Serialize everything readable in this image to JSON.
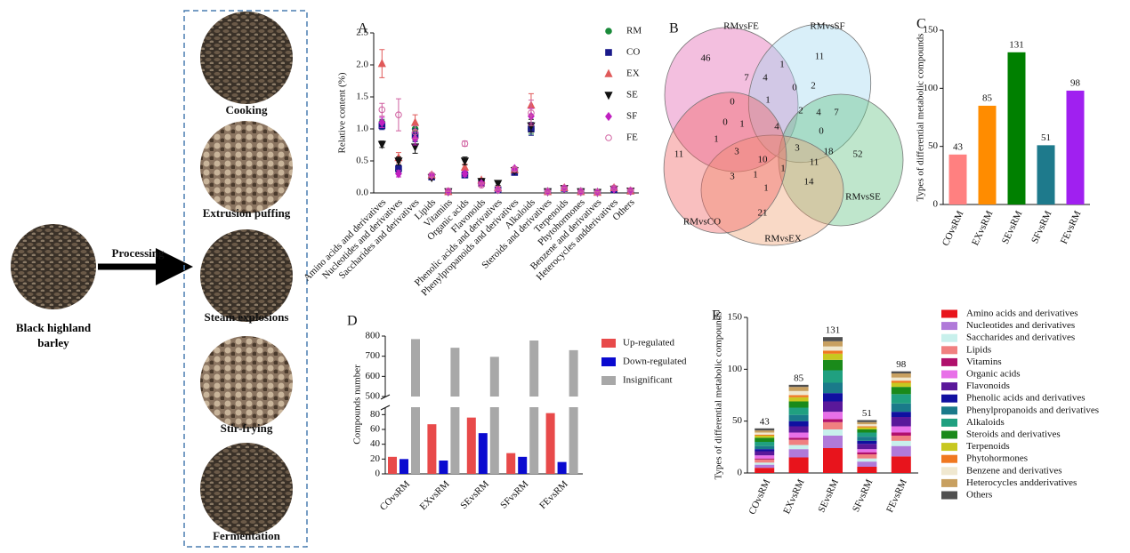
{
  "figure": {
    "source_label": "Black highland barley",
    "arrow_label": "Processing",
    "methods": [
      "Cooking",
      "Extrusion puffing",
      "Steam explosions",
      "Stir-frying",
      "Fermentation"
    ]
  },
  "chart_data": [
    {
      "type": "scatter",
      "panel": "A",
      "ylabel": "Relative content (%)",
      "categories": [
        "Amino acids and derivatives",
        "Nucleotides and derivatives",
        "Saccharides and derivatives",
        "Lipids",
        "Vitamins",
        "Organic acids",
        "Flavonoids",
        "Phenolic acids and derivatives",
        "Phenylpropanoids and derivatives",
        "Alkaloids",
        "Steroids and derivatives",
        "Terpenoids",
        "Phytohormones",
        "Benzene and derivatives",
        "Heterocycles andderivatives",
        "Others"
      ],
      "ylim": [
        0,
        2.5
      ],
      "yticks": [
        {
          "value": 0,
          "label": "0.0"
        },
        0.5,
        {
          "value": 1,
          "label": "1.0"
        },
        1.5,
        {
          "value": 2,
          "label": "2.0"
        },
        2.5
      ],
      "series": [
        {
          "name": "RM",
          "color": "#1a8a3a",
          "marker": "circle",
          "values": [
            1.1,
            0.35,
            1.0,
            0.25,
            0.02,
            0.3,
            0.15,
            0.05,
            0.33,
            1.0,
            0.02,
            0.07,
            0.02,
            0.01,
            0.05,
            0.03
          ],
          "errors": [
            0.05,
            0.04,
            0.08,
            0.02,
            0.01,
            0.03,
            0.02,
            0.01,
            0.02,
            0.08,
            0.01,
            0.01,
            0.01,
            0.01,
            0.01,
            0.01
          ]
        },
        {
          "name": "CO",
          "color": "#1a1a8a",
          "marker": "square",
          "values": [
            1.05,
            0.38,
            0.9,
            0.25,
            0.02,
            0.28,
            0.15,
            0.05,
            0.32,
            1.0,
            0.02,
            0.07,
            0.02,
            0.01,
            0.05,
            0.03
          ],
          "errors": [
            0.06,
            0.05,
            0.1,
            0.02,
            0.01,
            0.03,
            0.02,
            0.01,
            0.02,
            0.1,
            0.01,
            0.01,
            0.01,
            0.01,
            0.01,
            0.01
          ]
        },
        {
          "name": "EX",
          "color": "#e05a5a",
          "marker": "triangle",
          "values": [
            2.02,
            0.55,
            1.1,
            0.28,
            0.02,
            0.4,
            0.2,
            0.08,
            0.36,
            1.37,
            0.02,
            0.08,
            0.02,
            0.01,
            0.08,
            0.03
          ],
          "errors": [
            0.22,
            0.08,
            0.12,
            0.03,
            0.01,
            0.05,
            0.03,
            0.02,
            0.03,
            0.18,
            0.01,
            0.01,
            0.01,
            0.01,
            0.02,
            0.01
          ]
        },
        {
          "name": "SE",
          "color": "#111111",
          "marker": "triangle-down",
          "values": [
            0.76,
            0.5,
            0.72,
            0.24,
            0.02,
            0.5,
            0.18,
            0.15,
            0.35,
            1.05,
            0.02,
            0.07,
            0.02,
            0.01,
            0.06,
            0.03
          ],
          "errors": [
            0.05,
            0.06,
            0.1,
            0.02,
            0.01,
            0.06,
            0.03,
            0.03,
            0.03,
            0.1,
            0.01,
            0.01,
            0.01,
            0.01,
            0.01,
            0.01
          ]
        },
        {
          "name": "SF",
          "color": "#c020c0",
          "marker": "diamond",
          "values": [
            1.1,
            0.3,
            0.85,
            0.27,
            0.02,
            0.3,
            0.15,
            0.05,
            0.38,
            1.2,
            0.02,
            0.07,
            0.02,
            0.01,
            0.06,
            0.03
          ],
          "errors": [
            0.08,
            0.05,
            0.1,
            0.02,
            0.01,
            0.04,
            0.02,
            0.01,
            0.03,
            0.12,
            0.01,
            0.01,
            0.01,
            0.01,
            0.01,
            0.01
          ]
        },
        {
          "name": "FE",
          "color": "#d060a0",
          "marker": "circle-open",
          "values": [
            1.3,
            1.22,
            0.95,
            0.28,
            0.03,
            0.77,
            0.12,
            0.05,
            0.37,
            1.25,
            0.02,
            0.08,
            0.02,
            0.01,
            0.08,
            0.04
          ],
          "errors": [
            0.1,
            0.25,
            0.1,
            0.03,
            0.01,
            0.04,
            0.02,
            0.01,
            0.03,
            0.2,
            0.01,
            0.01,
            0.01,
            0.01,
            0.02,
            0.01
          ]
        }
      ]
    },
    {
      "type": "venn",
      "panel": "B",
      "sets": [
        {
          "name": "RMvsFE",
          "color": "#e060b0"
        },
        {
          "name": "RMvsSF",
          "color": "#a0d8f0"
        },
        {
          "name": "RMvsSE",
          "color": "#60c080"
        },
        {
          "name": "RMvsEX",
          "color": "#f0a070"
        },
        {
          "name": "RMvsCO",
          "color": "#f06060"
        }
      ],
      "regions": [
        46,
        1,
        11,
        7,
        4,
        0,
        2,
        0,
        1,
        4,
        2,
        7,
        0,
        1,
        4,
        0,
        11,
        1,
        3,
        10,
        3,
        18,
        52,
        1,
        11,
        3,
        1,
        1,
        14,
        21
      ]
    },
    {
      "type": "bar",
      "panel": "C",
      "ylabel": "Types of differential metabolic compounds",
      "categories": [
        "COvsRM",
        "EXvsRM",
        "SEvsRM",
        "SFvsRM",
        "FEvsRM"
      ],
      "values": [
        43,
        85,
        131,
        51,
        98
      ],
      "colors": [
        "#ff8080",
        "#ff8c00",
        "#008000",
        "#1e7a8c",
        "#a020f0"
      ],
      "ylim": [
        0,
        150
      ],
      "yticks": [
        0,
        50,
        100,
        150
      ]
    },
    {
      "type": "grouped_bar",
      "panel": "D",
      "ylabel": "Compounds number",
      "categories": [
        "COvsRM",
        "EXvsRM",
        "SEvsRM",
        "SFvsRM",
        "FEvsRM"
      ],
      "ylim": [
        0,
        800
      ],
      "axis_break": [
        90,
        500
      ],
      "yticks": [
        0,
        20,
        40,
        60,
        80,
        500,
        600,
        700,
        800
      ],
      "series": [
        {
          "name": "Up-regulated",
          "color": "#e84a4a",
          "values": [
            23,
            67,
            76,
            28,
            82
          ]
        },
        {
          "name": "Down-regulated",
          "color": "#0a0ad0",
          "values": [
            20,
            18,
            55,
            23,
            16
          ]
        },
        {
          "name": "Insignificant",
          "color": "#a8a8a8",
          "values": [
            785,
            742,
            697,
            778,
            730
          ]
        }
      ]
    },
    {
      "type": "stacked_bar",
      "panel": "E",
      "ylabel": "Types of differential metabolic compounds",
      "categories": [
        "COvsRM",
        "EXvsRM",
        "SEvsRM",
        "SFvsRM",
        "FEvsRM"
      ],
      "totals": [
        43,
        85,
        131,
        51,
        98
      ],
      "ylim": [
        0,
        150
      ],
      "yticks": [
        0,
        50,
        100,
        150
      ],
      "series": [
        {
          "name": "Amino acids and derivatives",
          "color": "#e8141c",
          "values": [
            5,
            15,
            24,
            6,
            16
          ]
        },
        {
          "name": "Nucleotides and derivatives",
          "color": "#b07ad9",
          "values": [
            3,
            8,
            12,
            5,
            10
          ]
        },
        {
          "name": "Saccharides and derivatives",
          "color": "#c8f0ec",
          "values": [
            2,
            4,
            6,
            3,
            5
          ]
        },
        {
          "name": "Lipids",
          "color": "#f08080",
          "values": [
            3,
            5,
            7,
            4,
            5
          ]
        },
        {
          "name": "Vitamins",
          "color": "#b0106c",
          "values": [
            1,
            2,
            3,
            2,
            3
          ]
        },
        {
          "name": "Organic acids",
          "color": "#e870e8",
          "values": [
            3,
            5,
            7,
            3,
            6
          ]
        },
        {
          "name": "Flavonoids",
          "color": "#5a189a",
          "values": [
            4,
            6,
            10,
            5,
            9
          ]
        },
        {
          "name": "Phenolic acids and derivatives",
          "color": "#1010a0",
          "values": [
            2,
            5,
            8,
            3,
            5
          ]
        },
        {
          "name": "Phenylpropanoids and derivatives",
          "color": "#1a7a8a",
          "values": [
            3,
            6,
            10,
            4,
            8
          ]
        },
        {
          "name": "Alkaloids",
          "color": "#20a080",
          "values": [
            4,
            7,
            12,
            4,
            9
          ]
        },
        {
          "name": "Steroids and derivatives",
          "color": "#1a8a1a",
          "values": [
            4,
            6,
            10,
            3,
            7
          ]
        },
        {
          "name": "Terpenoids",
          "color": "#c8c820",
          "values": [
            2,
            4,
            6,
            2,
            4
          ]
        },
        {
          "name": "Phytohormones",
          "color": "#f07820",
          "values": [
            1,
            2,
            3,
            1,
            2
          ]
        },
        {
          "name": "Benzene and derivatives",
          "color": "#f0e8d0",
          "values": [
            2,
            4,
            4,
            2,
            3
          ]
        },
        {
          "name": "Heterocycles andderivatives",
          "color": "#c8a060",
          "values": [
            2,
            4,
            5,
            2,
            4
          ]
        },
        {
          "name": "Others",
          "color": "#505050",
          "values": [
            2,
            2,
            4,
            2,
            2
          ]
        }
      ]
    }
  ]
}
